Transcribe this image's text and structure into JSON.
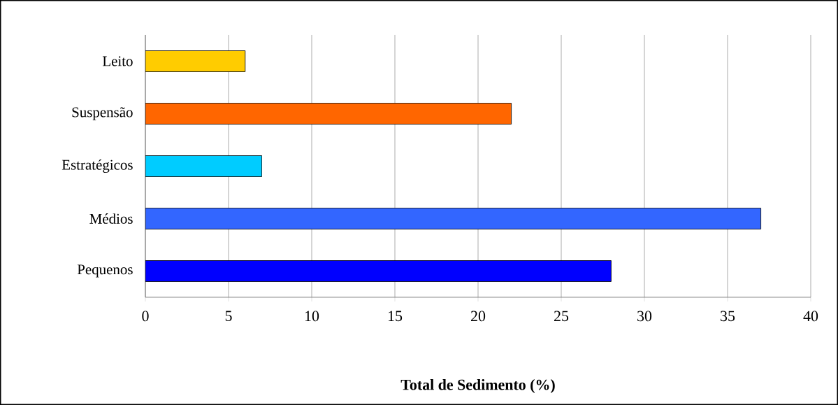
{
  "chart_data": {
    "type": "bar",
    "orientation": "horizontal",
    "xlabel": "Total de Sedimento (%)",
    "categories": [
      "Leito",
      "Suspensão",
      "Estratégicos",
      "Médios",
      "Pequenos"
    ],
    "values": [
      6,
      22,
      7,
      37,
      28
    ],
    "colors": [
      "#ffcc00",
      "#ff6600",
      "#00ccff",
      "#3366ff",
      "#0000ff"
    ],
    "xlim": [
      0,
      40
    ],
    "xticks": [
      0,
      5,
      10,
      15,
      20,
      25,
      30,
      35,
      40
    ],
    "grid": "x"
  }
}
